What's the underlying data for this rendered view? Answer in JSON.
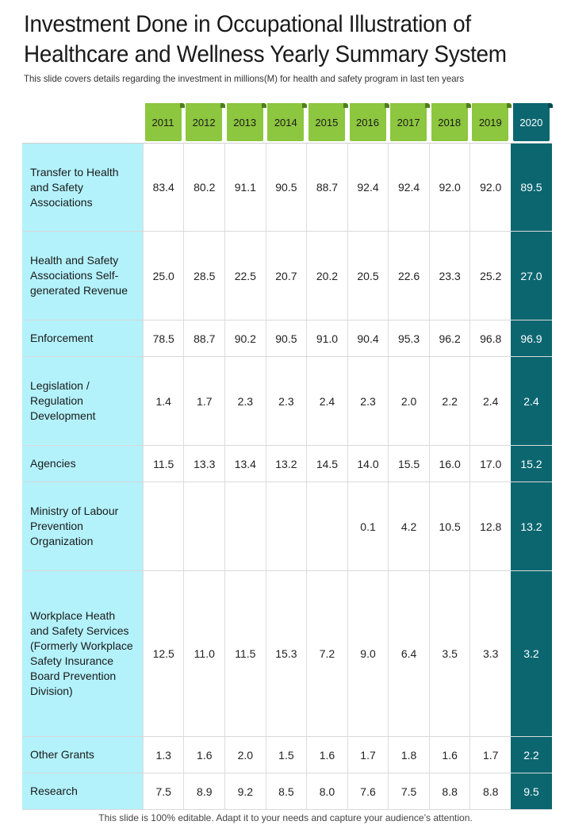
{
  "title": "Investment Done in Occupational Illustration of Healthcare and Wellness Yearly Summary System",
  "subtitle": "This slide covers details regarding the investment in millions(M) for health and safety program in last ten years",
  "footer": "This slide is 100% editable. Adapt it to your needs and capture your audience’s attention.",
  "colors": {
    "year_tab": "#8dc63f",
    "highlight": "#0b6670",
    "label_bg": "#b3f2fb"
  },
  "years": [
    "2011",
    "2012",
    "2013",
    "2014",
    "2015",
    "2016",
    "2017",
    "2018",
    "2019",
    "2020"
  ],
  "rows": [
    {
      "label": "Transfer to Health and Safety Associations",
      "values": [
        "83.4",
        "80.2",
        "91.1",
        "90.5",
        "88.7",
        "92.4",
        "92.4",
        "92.0",
        "92.0",
        "89.5"
      ]
    },
    {
      "label": "Health and Safety Associations Self-generated Revenue",
      "values": [
        "25.0",
        "28.5",
        "22.5",
        "20.7",
        "20.2",
        "20.5",
        "22.6",
        "23.3",
        "25.2",
        "27.0"
      ]
    },
    {
      "label": "Enforcement",
      "values": [
        "78.5",
        "88.7",
        "90.2",
        "90.5",
        "91.0",
        "90.4",
        "95.3",
        "96.2",
        "96.8",
        "96.9"
      ]
    },
    {
      "label": "Legislation / Regulation Development",
      "values": [
        "1.4",
        "1.7",
        "2.3",
        "2.3",
        "2.4",
        "2.3",
        "2.0",
        "2.2",
        "2.4",
        "2.4"
      ]
    },
    {
      "label": "Agencies",
      "values": [
        "11.5",
        "13.3",
        "13.4",
        "13.2",
        "14.5",
        "14.0",
        "15.5",
        "16.0",
        "17.0",
        "15.2"
      ]
    },
    {
      "label": "Ministry of Labour Prevention Organization",
      "values": [
        "",
        "",
        "",
        "",
        "",
        "0.1",
        "4.2",
        "10.5",
        "12.8",
        "13.2"
      ]
    },
    {
      "label": "Workplace Heath and Safety Services (Formerly Workplace Safety Insurance Board Prevention Division)",
      "values": [
        "12.5",
        "11.0",
        "11.5",
        "15.3",
        "7.2",
        "9.0",
        "6.4",
        "3.5",
        "3.3",
        "3.2"
      ]
    },
    {
      "label": "Other Grants",
      "values": [
        "1.3",
        "1.6",
        "2.0",
        "1.5",
        "1.6",
        "1.7",
        "1.8",
        "1.6",
        "1.7",
        "2.2"
      ]
    },
    {
      "label": "Research",
      "values": [
        "7.5",
        "8.9",
        "9.2",
        "8.5",
        "8.0",
        "7.6",
        "7.5",
        "8.8",
        "8.8",
        "9.5"
      ]
    }
  ]
}
